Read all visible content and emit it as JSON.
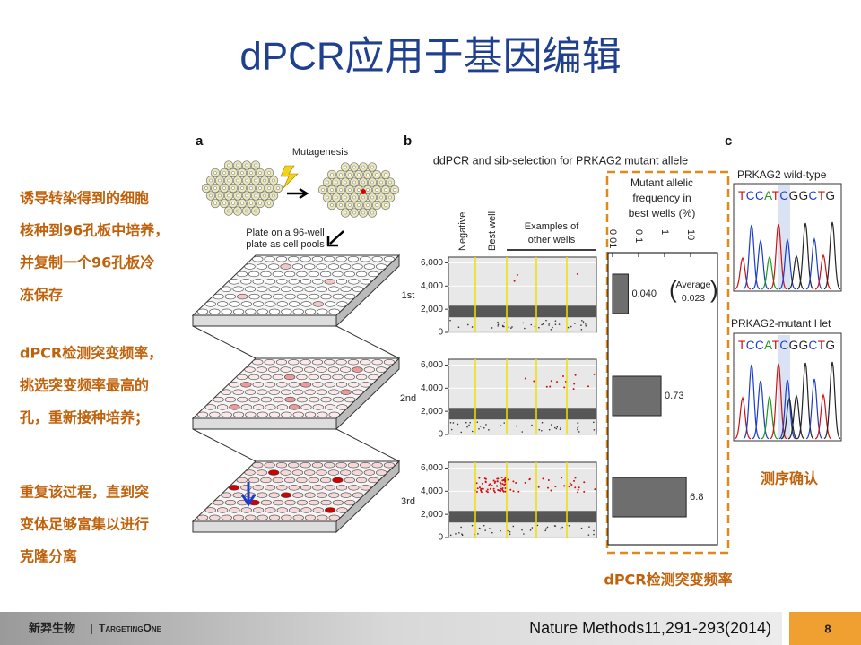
{
  "title": "dPCR应用于基因编辑",
  "notes": [
    {
      "lines": [
        "诱导转染得到的细胞",
        "核种到96孔板中培养，",
        "并复制一个96孔板冷",
        "冻保存"
      ]
    },
    {
      "lines": [
        "dPCR检测突变频率，",
        "挑选突变频率最高的",
        "孔，重新接种培养；"
      ]
    },
    {
      "lines": [
        "重复该过程，直到突",
        "变体足够富集以进行",
        "克隆分离"
      ]
    }
  ],
  "panel_a": {
    "label": "a",
    "mutagenesis": "Mutagenesis",
    "plate_text": [
      "Plate on a 96-well",
      "plate as cell pools"
    ],
    "rounds": [
      "1st",
      "2nd",
      "3rd"
    ]
  },
  "panel_b": {
    "label": "b",
    "title": "ddPCR and sib-selection for PRKAG2 mutant allele",
    "columns": [
      "Negative",
      "Best well"
    ],
    "other_wells": [
      "Examples of",
      "other wells"
    ],
    "droplet_axis": {
      "ylim": [
        0,
        6500
      ],
      "yticks": [
        0,
        {
          "value": 2000,
          "label": "2,000"
        },
        {
          "value": 4000,
          "label": "4,000"
        },
        {
          "value": 6000,
          "label": "6,000"
        }
      ]
    },
    "caption": "dPCR检测突变频率"
  },
  "chart_data": {
    "type": "bar",
    "orientation": "horizontal",
    "x_label": [
      "Mutant allelic",
      "frequency in",
      "best wells (%)"
    ],
    "xscale": "log",
    "xlim": [
      0.01,
      10
    ],
    "xticks": [
      0.01,
      0.1,
      1,
      10
    ],
    "values": [
      0.04,
      0.73,
      6.8
    ],
    "value_labels": [
      "0.040",
      "0.73",
      "6.8"
    ],
    "annotation": [
      "Average",
      "0.023"
    ],
    "color": "#6e6e6e"
  },
  "panel_c": {
    "label": "c",
    "traces": [
      {
        "name": "PRKAG2 wild-type",
        "sequence": "TCCATCGGCTG"
      },
      {
        "name": "PRKAG2-mutant Het",
        "sequence": "TCCATCGGCTG"
      }
    ],
    "caption": "测序确认"
  },
  "footer": {
    "brand": "新羿生物",
    "brand_en": "TargetingOne",
    "citation": "Nature Methods11,291-293(2014)",
    "page": 8
  }
}
